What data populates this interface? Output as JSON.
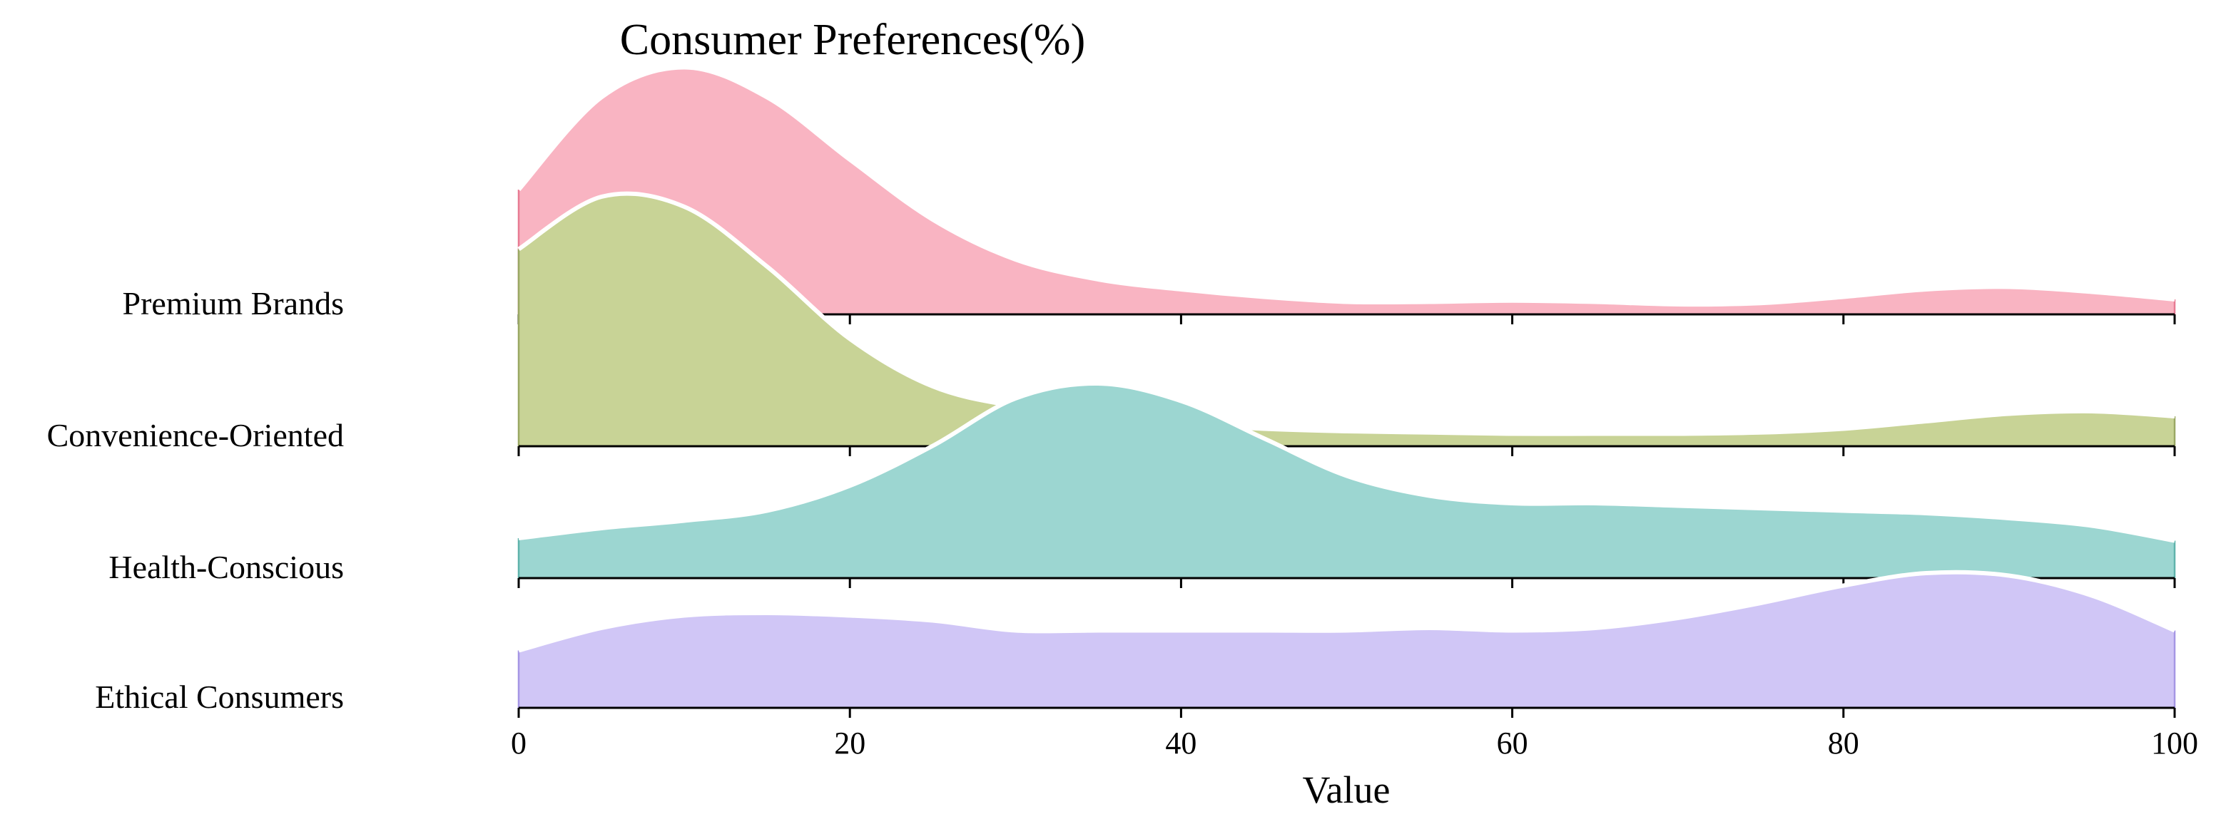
{
  "chart_data": {
    "type": "area",
    "subtype": "ridgeline",
    "title": "Consumer Preferences(%)",
    "xlabel": "Value",
    "ylabel": "",
    "xlim": [
      0,
      100
    ],
    "x_ticks": [
      0,
      20,
      40,
      60,
      80,
      100
    ],
    "grid": false,
    "legend": "none",
    "x": [
      0,
      5,
      10,
      15,
      20,
      25,
      30,
      35,
      40,
      45,
      50,
      55,
      60,
      65,
      70,
      75,
      80,
      85,
      90,
      95,
      100
    ],
    "series": [
      {
        "name": "Premium Brands",
        "color": "#f9b4c2",
        "edge_color": "#e77b93",
        "density": [
          0.5,
          0.87,
          0.99,
          0.87,
          0.62,
          0.38,
          0.22,
          0.14,
          0.1,
          0.07,
          0.05,
          0.05,
          0.055,
          0.05,
          0.04,
          0.045,
          0.07,
          0.1,
          0.11,
          0.09,
          0.06
        ]
      },
      {
        "name": "Convenience-Oriented",
        "color": "#c8d396",
        "edge_color": "#9aa864",
        "density": [
          0.79,
          1.0,
          0.96,
          0.72,
          0.43,
          0.24,
          0.16,
          0.12,
          0.09,
          0.07,
          0.06,
          0.055,
          0.05,
          0.05,
          0.05,
          0.055,
          0.07,
          0.1,
          0.13,
          0.14,
          0.12
        ]
      },
      {
        "name": "Health-Conscious",
        "color": "#9cd6d1",
        "edge_color": "#5fb3ab",
        "density": [
          0.16,
          0.2,
          0.23,
          0.27,
          0.37,
          0.53,
          0.72,
          0.78,
          0.71,
          0.56,
          0.41,
          0.33,
          0.3,
          0.3,
          0.29,
          0.28,
          0.27,
          0.26,
          0.24,
          0.21,
          0.15
        ]
      },
      {
        "name": "Ethical Consumers",
        "color": "#d0c6f6",
        "edge_color": "#a596e4",
        "density": [
          0.23,
          0.32,
          0.37,
          0.38,
          0.37,
          0.35,
          0.31,
          0.31,
          0.31,
          0.31,
          0.31,
          0.32,
          0.31,
          0.32,
          0.36,
          0.42,
          0.49,
          0.54,
          0.53,
          0.45,
          0.31
        ]
      }
    ]
  }
}
